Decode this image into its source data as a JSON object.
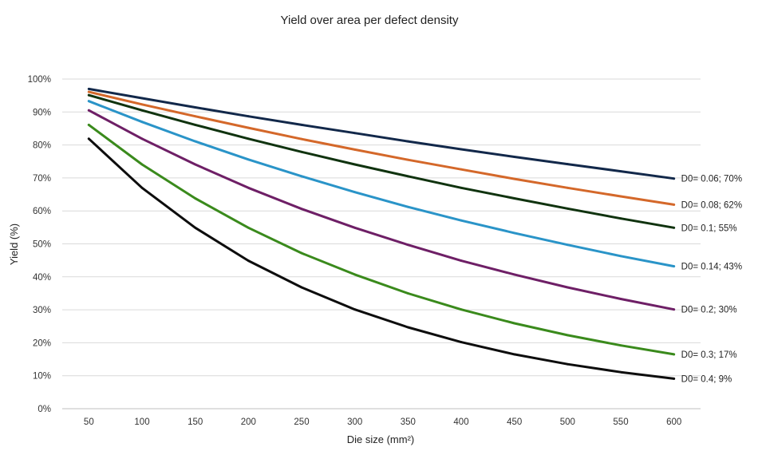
{
  "chart_data": {
    "type": "line",
    "title": "Yield over area per defect density",
    "xlabel": "Die size (mm²)",
    "ylabel": "Yield (%)",
    "x": [
      50,
      100,
      150,
      200,
      250,
      300,
      350,
      400,
      450,
      500,
      550,
      600
    ],
    "xticks": [
      "50",
      "100",
      "150",
      "200",
      "250",
      "300",
      "350",
      "400",
      "450",
      "500",
      "550",
      "600"
    ],
    "xlim": [
      25,
      625
    ],
    "ylim": [
      0,
      100
    ],
    "yticks": [
      "0%",
      "10%",
      "20%",
      "30%",
      "40%",
      "50%",
      "60%",
      "70%",
      "80%",
      "90%",
      "100%"
    ],
    "grid": true,
    "legend": "none",
    "series": [
      {
        "label": "D0= 0.06; 70%",
        "color": "#12284a",
        "values": [
          97.0,
          94.2,
          91.4,
          88.7,
          86.1,
          83.6,
          81.1,
          78.7,
          76.4,
          74.2,
          72.0,
          69.8
        ]
      },
      {
        "label": "D0= 0.08; 62%",
        "color": "#d4682a",
        "values": [
          96.1,
          92.3,
          88.7,
          85.2,
          81.8,
          78.6,
          75.5,
          72.6,
          69.7,
          67.0,
          64.4,
          61.9
        ]
      },
      {
        "label": "D0= 0.1; 55%",
        "color": "#10330f",
        "values": [
          95.1,
          90.5,
          86.1,
          81.9,
          77.9,
          74.1,
          70.5,
          67.0,
          63.8,
          60.7,
          57.7,
          54.9
        ]
      },
      {
        "label": "D0= 0.14; 43%",
        "color": "#2a94c8",
        "values": [
          93.3,
          87.0,
          81.1,
          75.6,
          70.5,
          65.7,
          61.2,
          57.1,
          53.3,
          49.7,
          46.3,
          43.2
        ]
      },
      {
        "label": "D0= 0.2; 30%",
        "color": "#6e1f66",
        "values": [
          90.5,
          81.9,
          74.1,
          67.0,
          60.6,
          54.9,
          49.7,
          44.9,
          40.7,
          36.8,
          33.3,
          30.1
        ]
      },
      {
        "label": "D0= 0.3; 17%",
        "color": "#3a8a1c",
        "values": [
          86.1,
          74.1,
          63.8,
          54.9,
          47.2,
          40.7,
          35.0,
          30.1,
          25.9,
          22.3,
          19.2,
          16.5
        ]
      },
      {
        "label": "D0= 0.4; 9%",
        "color": "#0d0d0d",
        "values": [
          81.9,
          67.0,
          54.9,
          44.9,
          36.8,
          30.1,
          24.7,
          20.2,
          16.5,
          13.5,
          11.1,
          9.1
        ]
      }
    ]
  }
}
